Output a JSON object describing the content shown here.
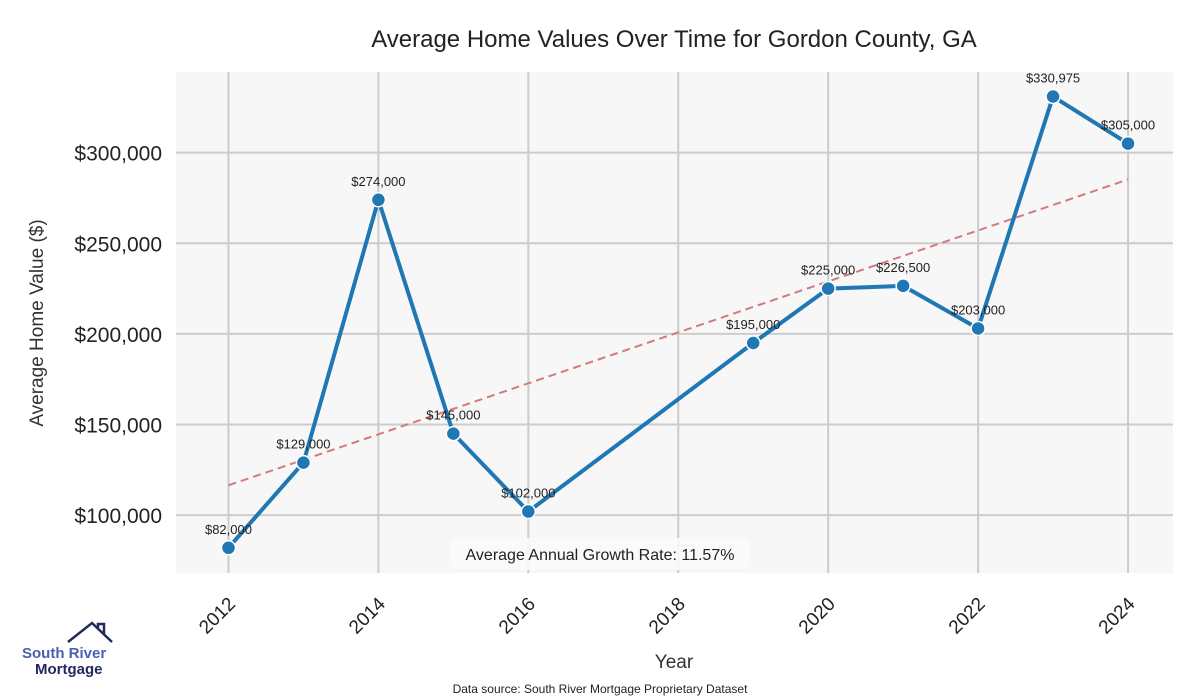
{
  "chart_data": {
    "type": "line",
    "title": "Average Home Values Over Time for Gordon County, GA",
    "xlabel": "Year",
    "ylabel": "Average Home Value ($)",
    "x": [
      2012,
      2013,
      2014,
      2015,
      2016,
      2019,
      2020,
      2021,
      2022,
      2023,
      2024
    ],
    "values": [
      82000,
      129000,
      274000,
      145000,
      102000,
      195000,
      225000,
      226500,
      203000,
      330975,
      305000
    ],
    "data_labels": [
      "$82,000",
      "$129,000",
      "$274,000",
      "$145,000",
      "$102,000",
      "$195,000",
      "$225,000",
      "$226,500",
      "$203,000",
      "$330,975",
      "$305,000"
    ],
    "trendline": {
      "x": [
        2012,
        2024
      ],
      "y": [
        116500,
        285200
      ],
      "style": "dashed"
    },
    "xlim": [
      2011.3,
      2024.6
    ],
    "ylim": [
      68100,
      344500
    ],
    "xticks": [
      2012,
      2014,
      2016,
      2018,
      2020,
      2022,
      2024
    ],
    "xtick_labels": [
      "2012",
      "2014",
      "2016",
      "2018",
      "2020",
      "2022",
      "2024"
    ],
    "yticks": [
      100000,
      150000,
      200000,
      250000,
      300000
    ],
    "ytick_labels": [
      "$100,000",
      "$150,000",
      "$200,000",
      "$250,000",
      "$300,000"
    ],
    "grid": true,
    "annotation": "Average Annual Growth Rate: 11.57%",
    "source": "Data source: South River Mortgage Proprietary Dataset",
    "colors": {
      "line": "#1f77b4",
      "trend": "#d47a7a",
      "plot_bg": "#f7f7f7",
      "grid": "#cccccc"
    }
  },
  "logo": {
    "line1": "South River",
    "line2": "Mortgage"
  }
}
